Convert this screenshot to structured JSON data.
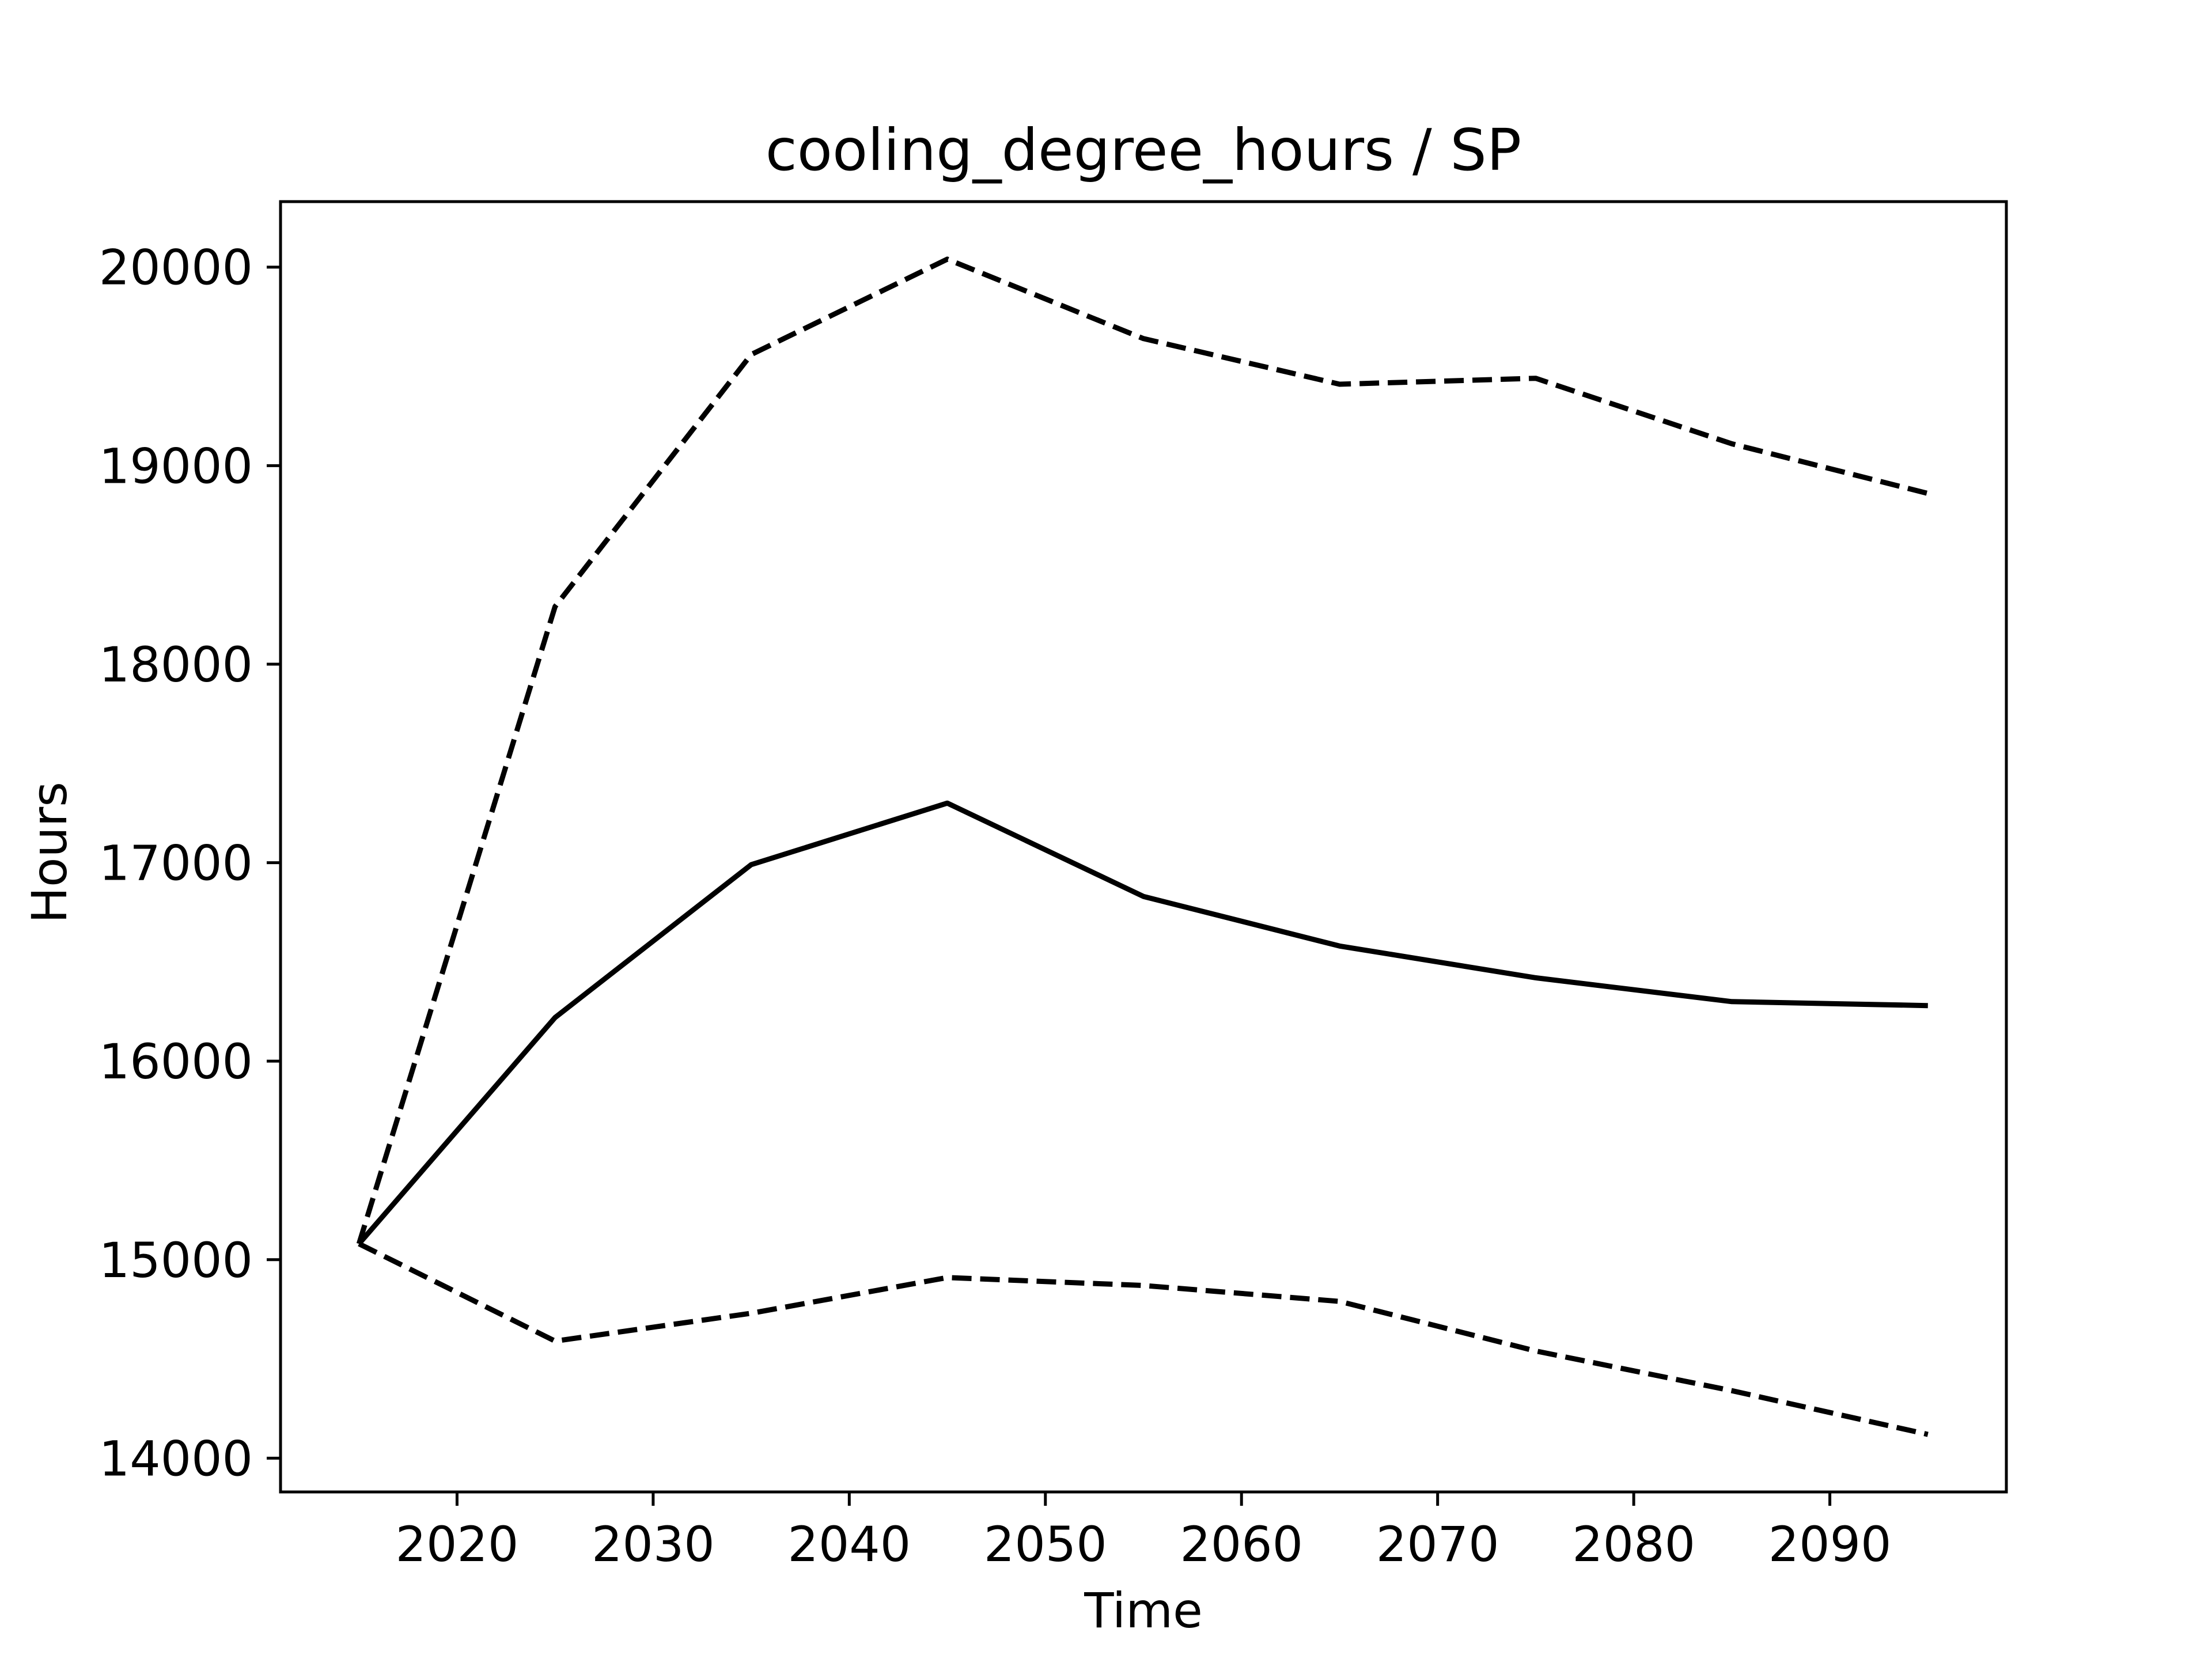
{
  "chart_data": {
    "type": "line",
    "title": "cooling_degree_hours / SP",
    "xlabel": "Time",
    "ylabel": "Hours",
    "x": [
      2015,
      2025,
      2035,
      2045,
      2055,
      2065,
      2075,
      2085,
      2095
    ],
    "xlim": [
      2011,
      2099
    ],
    "ylim": [
      13830,
      20330
    ],
    "xticks": [
      2020,
      2030,
      2040,
      2050,
      2060,
      2070,
      2080,
      2090
    ],
    "yticks": [
      14000,
      15000,
      16000,
      17000,
      18000,
      19000,
      20000
    ],
    "grid": false,
    "series": [
      {
        "style": "solid",
        "color": "#000000",
        "values": [
          15080,
          16220,
          16990,
          17300,
          16830,
          16580,
          16420,
          16300,
          16280
        ]
      },
      {
        "style": "dashed",
        "color": "#000000",
        "values": [
          15080,
          18290,
          19560,
          20040,
          19640,
          19410,
          19440,
          19110,
          18860
        ]
      },
      {
        "style": "dashed",
        "color": "#000000",
        "values": [
          15080,
          14590,
          14730,
          14910,
          14870,
          14790,
          14540,
          14340,
          14120
        ]
      }
    ]
  }
}
